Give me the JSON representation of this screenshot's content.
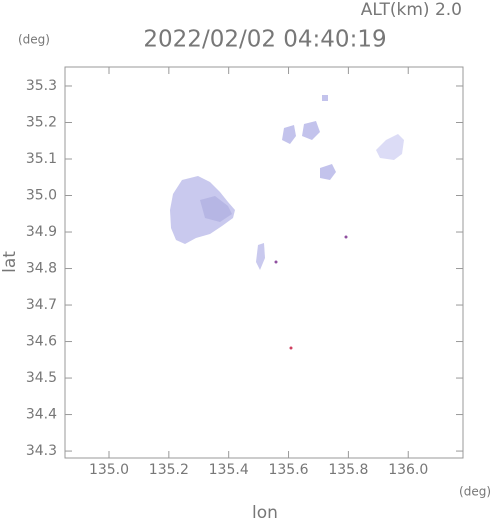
{
  "chart_data": {
    "type": "map",
    "title": "2022/02/02 04:40:19",
    "subtitle": "ALT(km) 2.0",
    "x_label": "lon",
    "y_label": "lat",
    "x_unit": "(deg)",
    "y_unit": "(deg)",
    "xlim": [
      134.853,
      136.183
    ],
    "ylim": [
      34.281,
      35.352
    ],
    "xticks": [
      {
        "value": 135.0,
        "label": "135.0"
      },
      135.2,
      135.4,
      135.6,
      135.8,
      {
        "value": 136.0,
        "label": "136.0"
      }
    ],
    "yticks": [
      35.3,
      35.2,
      35.1,
      {
        "value": 35.0,
        "label": "35.0"
      },
      34.9,
      34.8,
      34.7,
      34.6,
      34.5,
      34.4,
      34.3
    ]
  }
}
